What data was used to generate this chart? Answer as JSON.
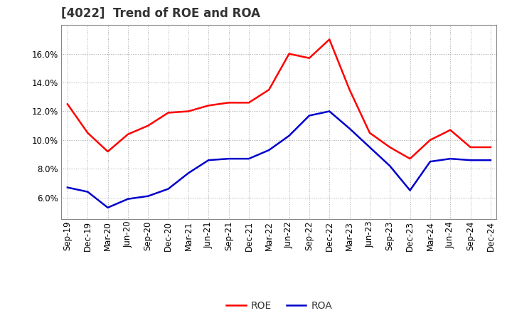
{
  "title": "[4022]  Trend of ROE and ROA",
  "labels": [
    "Sep-19",
    "Dec-19",
    "Mar-20",
    "Jun-20",
    "Sep-20",
    "Dec-20",
    "Mar-21",
    "Jun-21",
    "Sep-21",
    "Dec-21",
    "Mar-22",
    "Jun-22",
    "Sep-22",
    "Dec-22",
    "Mar-23",
    "Jun-23",
    "Sep-23",
    "Dec-23",
    "Mar-24",
    "Jun-24",
    "Sep-24",
    "Dec-24"
  ],
  "ROE": [
    12.5,
    10.5,
    9.2,
    10.4,
    11.0,
    11.9,
    12.0,
    12.4,
    12.6,
    12.6,
    13.5,
    16.0,
    15.7,
    17.0,
    13.5,
    10.5,
    9.5,
    8.7,
    10.0,
    10.7,
    9.5,
    9.5
  ],
  "ROA": [
    6.7,
    6.4,
    5.3,
    5.9,
    6.1,
    6.6,
    7.7,
    8.6,
    8.7,
    8.7,
    9.3,
    10.3,
    11.7,
    12.0,
    10.8,
    9.5,
    8.2,
    6.5,
    8.5,
    8.7,
    8.6,
    8.6
  ],
  "roe_color": "#FF0000",
  "roa_color": "#0000CC",
  "line_width": 1.8,
  "background_color": "#FFFFFF",
  "grid_color": "#AAAAAA",
  "ylim": [
    4.5,
    18.0
  ],
  "yticks": [
    6.0,
    8.0,
    10.0,
    12.0,
    14.0,
    16.0
  ],
  "title_fontsize": 12,
  "legend_fontsize": 10,
  "tick_fontsize": 8.5
}
